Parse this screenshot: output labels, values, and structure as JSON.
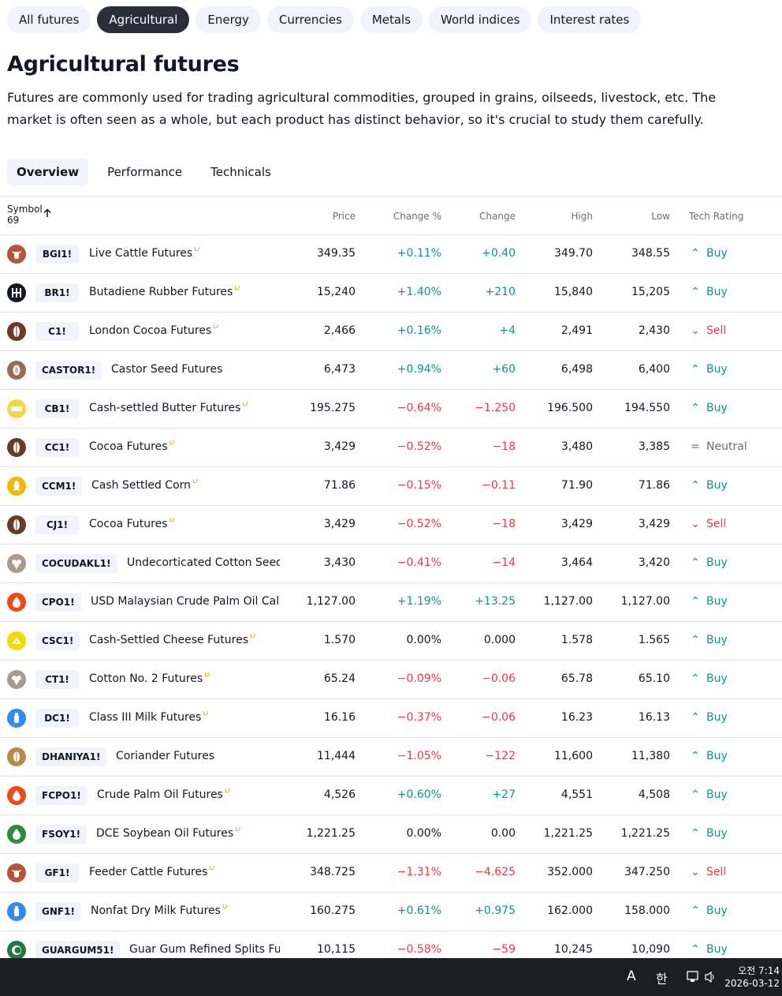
{
  "category_tabs": [
    {
      "label": "All futures",
      "active": false
    },
    {
      "label": "Agricultural",
      "active": true
    },
    {
      "label": "Energy",
      "active": false
    },
    {
      "label": "Currencies",
      "active": false
    },
    {
      "label": "Metals",
      "active": false
    },
    {
      "label": "World indices",
      "active": false
    },
    {
      "label": "Interest rates",
      "active": false
    }
  ],
  "page": {
    "title": "Agricultural futures",
    "description": "Futures are commonly used for trading agricultural commodities, grouped in grains, oilseeds, livestock, etc. The market is often seen as a whole, but each product has distinct behavior, so it's crucial to study them carefully."
  },
  "view_tabs": [
    {
      "label": "Overview",
      "active": true
    },
    {
      "label": "Performance",
      "active": false
    },
    {
      "label": "Technicals",
      "active": false
    }
  ],
  "table": {
    "headers": {
      "symbol": "Symbol",
      "count": "69",
      "price": "Price",
      "change_pct": "Change %",
      "change": "Change",
      "high": "High",
      "low": "Low",
      "tech_rating": "Tech Rating"
    },
    "rows": [
      {
        "ticker": "BGI1!",
        "name": "Live Cattle Futures",
        "delayed": "D",
        "price": "349.35",
        "change_pct": "+0.11%",
        "change": "+0.40",
        "high": "349.70",
        "low": "348.55",
        "rating": "Buy",
        "trend": "pos",
        "icon": "cattle-icon",
        "color": "#b5543a"
      },
      {
        "ticker": "BR1!",
        "name": "Butadiene Rubber Futures",
        "delayed": "D",
        "price": "15,240",
        "change_pct": "+1.40%",
        "change": "+210",
        "high": "15,840",
        "low": "15,205",
        "rating": "Buy",
        "trend": "pos",
        "icon": "rubber-icon",
        "color": "#131722"
      },
      {
        "ticker": "C1!",
        "name": "London Cocoa Futures",
        "delayed": "D",
        "price": "2,466",
        "change_pct": "+0.16%",
        "change": "+4",
        "high": "2,491",
        "low": "2,430",
        "rating": "Sell",
        "trend": "pos",
        "icon": "cocoa-icon",
        "color": "#6b3a24"
      },
      {
        "ticker": "CASTOR1!",
        "name": "Castor Seed Futures",
        "delayed": "",
        "price": "6,473",
        "change_pct": "+0.94%",
        "change": "+60",
        "high": "6,498",
        "low": "6,400",
        "rating": "Buy",
        "trend": "pos",
        "icon": "castor-seed-icon",
        "color": "#9c6b4e"
      },
      {
        "ticker": "CB1!",
        "name": "Cash-settled Butter Futures",
        "delayed": "D",
        "price": "195.275",
        "change_pct": "−0.64%",
        "change": "−1.250",
        "high": "196.500",
        "low": "194.550",
        "rating": "Buy",
        "trend": "neg",
        "icon": "butter-icon",
        "color": "#f5d547"
      },
      {
        "ticker": "CC1!",
        "name": "Cocoa Futures",
        "delayed": "D",
        "price": "3,429",
        "change_pct": "−0.52%",
        "change": "−18",
        "high": "3,480",
        "low": "3,385",
        "rating": "Neutral",
        "trend": "neg",
        "icon": "cocoa-icon",
        "color": "#6b3a24"
      },
      {
        "ticker": "CCM1!",
        "name": "Cash Settled Corn",
        "delayed": "D",
        "price": "71.86",
        "change_pct": "−0.15%",
        "change": "−0.11",
        "high": "71.90",
        "low": "71.86",
        "rating": "Buy",
        "trend": "neg",
        "icon": "corn-icon",
        "color": "#f2b705"
      },
      {
        "ticker": "CJ1!",
        "name": "Cocoa Futures",
        "delayed": "D",
        "price": "3,429",
        "change_pct": "−0.52%",
        "change": "−18",
        "high": "3,429",
        "low": "3,429",
        "rating": "Sell",
        "trend": "neg",
        "icon": "cocoa-icon",
        "color": "#6b3a24"
      },
      {
        "ticker": "COCUDAKL1!",
        "name": "Undecorticated Cotton Seed Oi…",
        "delayed": "",
        "price": "3,430",
        "change_pct": "−0.41%",
        "change": "−14",
        "high": "3,464",
        "low": "3,420",
        "rating": "Buy",
        "trend": "neg",
        "icon": "cotton-icon",
        "color": "#a89a8e"
      },
      {
        "ticker": "CPO1!",
        "name": "USD Malaysian Crude Palm Oil Cale…",
        "delayed": "D",
        "price": "1,127.00",
        "change_pct": "+1.19%",
        "change": "+13.25",
        "high": "1,127.00",
        "low": "1,127.00",
        "rating": "Buy",
        "trend": "pos",
        "icon": "oil-drop-icon",
        "color": "#f04a17"
      },
      {
        "ticker": "CSC1!",
        "name": "Cash-Settled Cheese Futures",
        "delayed": "D",
        "price": "1.570",
        "change_pct": "0.00%",
        "change": "0.000",
        "high": "1.578",
        "low": "1.565",
        "rating": "Buy",
        "trend": "flat",
        "icon": "cheese-icon",
        "color": "#f7d900"
      },
      {
        "ticker": "CT1!",
        "name": "Cotton No. 2 Futures",
        "delayed": "D",
        "price": "65.24",
        "change_pct": "−0.09%",
        "change": "−0.06",
        "high": "65.78",
        "low": "65.10",
        "rating": "Buy",
        "trend": "neg",
        "icon": "cotton-icon",
        "color": "#a89a8e"
      },
      {
        "ticker": "DC1!",
        "name": "Class III Milk Futures",
        "delayed": "D",
        "price": "16.16",
        "change_pct": "−0.37%",
        "change": "−0.06",
        "high": "16.23",
        "low": "16.13",
        "rating": "Buy",
        "trend": "neg",
        "icon": "milk-icon",
        "color": "#2f8cf2"
      },
      {
        "ticker": "DHANIYA1!",
        "name": "Coriander Futures",
        "delayed": "",
        "price": "11,444",
        "change_pct": "−1.05%",
        "change": "−122",
        "high": "11,600",
        "low": "11,380",
        "rating": "Buy",
        "trend": "neg",
        "icon": "coriander-icon",
        "color": "#b88a45"
      },
      {
        "ticker": "FCPO1!",
        "name": "Crude Palm Oil Futures",
        "delayed": "D",
        "price": "4,526",
        "change_pct": "+0.60%",
        "change": "+27",
        "high": "4,551",
        "low": "4,508",
        "rating": "Buy",
        "trend": "pos",
        "icon": "oil-drop-icon",
        "color": "#f04a17"
      },
      {
        "ticker": "FSOY1!",
        "name": "DCE Soybean Oil Futures",
        "delayed": "D",
        "price": "1,221.25",
        "change_pct": "0.00%",
        "change": "0.00",
        "high": "1,221.25",
        "low": "1,221.25",
        "rating": "Buy",
        "trend": "flat",
        "icon": "soybean-oil-icon",
        "color": "#2e8b3a"
      },
      {
        "ticker": "GF1!",
        "name": "Feeder Cattle Futures",
        "delayed": "D",
        "price": "348.725",
        "change_pct": "−1.31%",
        "change": "−4.625",
        "high": "352.000",
        "low": "347.250",
        "rating": "Sell",
        "trend": "neg",
        "icon": "cattle-icon",
        "color": "#b5543a"
      },
      {
        "ticker": "GNF1!",
        "name": "Nonfat Dry Milk Futures",
        "delayed": "D",
        "price": "160.275",
        "change_pct": "+0.61%",
        "change": "+0.975",
        "high": "162.000",
        "low": "158.000",
        "rating": "Buy",
        "trend": "pos",
        "icon": "milk-icon",
        "color": "#2f8cf2"
      },
      {
        "ticker": "GUARGUM51!",
        "name": "Guar Gum Refined Splits Futures",
        "delayed": "",
        "price": "10,115",
        "change_pct": "−0.58%",
        "change": "−59",
        "high": "10,245",
        "low": "10,090",
        "rating": "Buy",
        "trend": "neg",
        "icon": "guar-gum-icon",
        "color": "#1f7a3f"
      }
    ]
  },
  "taskbar": {
    "ime_mode": "A",
    "ime_lang": "한",
    "time": "오전 7:14",
    "date": "2026-03-12"
  }
}
